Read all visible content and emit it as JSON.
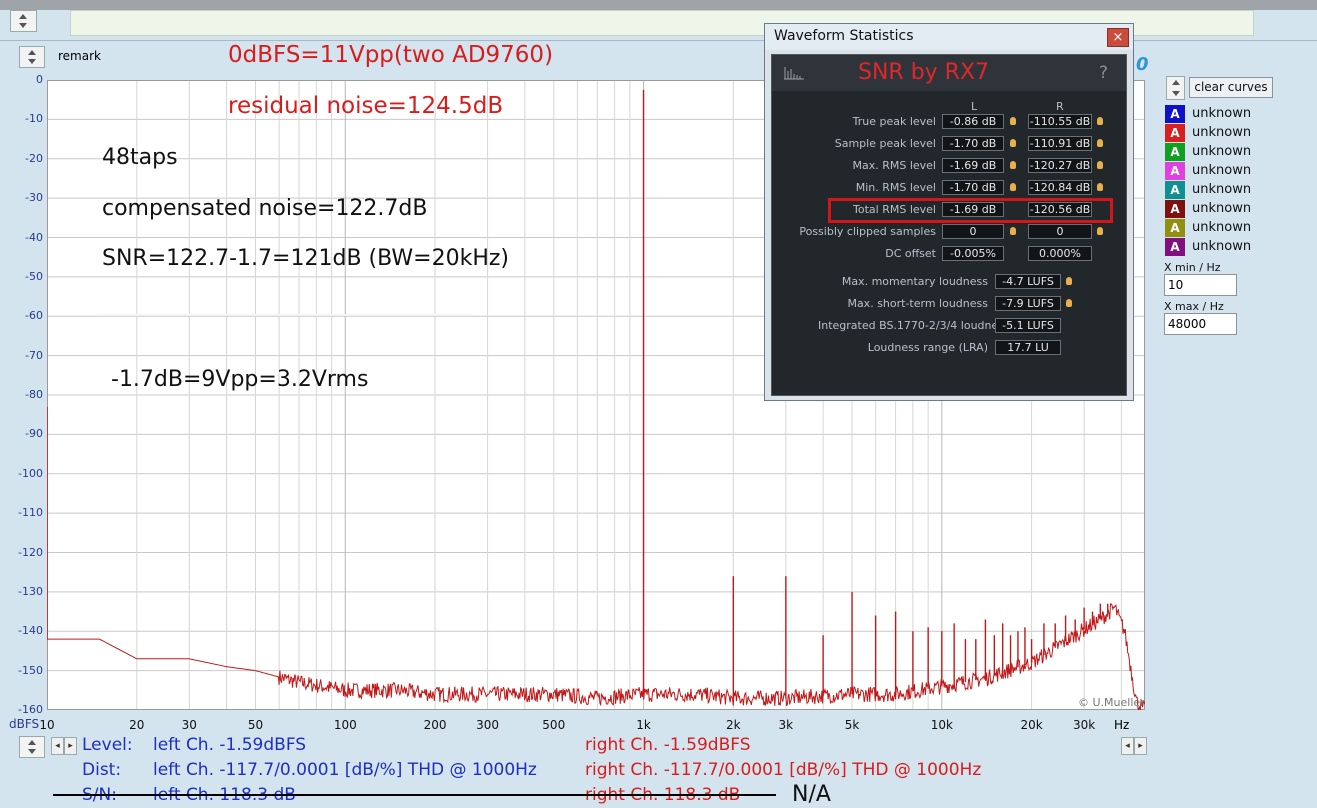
{
  "header": {
    "remark_label": "remark"
  },
  "annotations": {
    "fullscale": "0dBFS=11Vpp(two AD9760)",
    "residual": "residual noise=124.5dB",
    "taps": "48taps",
    "compensated": "compensated noise=122.7dB",
    "snr": "SNR=122.7-1.7=121dB (BW=20kHz)",
    "level": "-1.7dB=9Vpp=3.2Vrms"
  },
  "stats_window": {
    "title": "Waveform Statistics",
    "close_symbol": "×",
    "heading": "SNR by RX7",
    "help_symbol": "?",
    "col_left": "L",
    "col_right": "R",
    "rows": [
      {
        "label": "True peak level",
        "left": "-0.86 dB",
        "right": "-110.55 dB",
        "bulbs": true
      },
      {
        "label": "Sample peak level",
        "left": "-1.70 dB",
        "right": "-110.91 dB",
        "bulbs": true
      },
      {
        "label": "Max. RMS level",
        "left": "-1.69 dB",
        "right": "-120.27 dB",
        "bulbs": true
      },
      {
        "label": "Min. RMS level",
        "left": "-1.70 dB",
        "right": "-120.84 dB",
        "bulbs": true
      },
      {
        "label": "Total RMS level",
        "left": "-1.69 dB",
        "right": "-120.56 dB",
        "bulbs": false
      },
      {
        "label": "Possibly clipped samples",
        "left": "0",
        "right": "0",
        "bulbs": true
      },
      {
        "label": "DC offset",
        "left": "-0.005%",
        "right": "0.000%",
        "bulbs": false
      }
    ],
    "loudness": [
      {
        "label": "Max. momentary loudness",
        "value": "-4.7 LUFS",
        "bulb": true
      },
      {
        "label": "Max. short-term loudness",
        "value": "-7.9 LUFS",
        "bulb": true
      },
      {
        "label": "Integrated BS.1770-2/3/4 loudness",
        "value": "-5.1 LUFS",
        "bulb": false
      },
      {
        "label": "Loudness range (LRA)",
        "value": "17.7 LU",
        "bulb": false
      }
    ]
  },
  "controls": {
    "clear_curves": "clear curves",
    "legend": [
      {
        "letter": "A",
        "label": "unknown",
        "color": "#1010c8"
      },
      {
        "letter": "A",
        "label": "unknown",
        "color": "#d82020"
      },
      {
        "letter": "A",
        "label": "unknown",
        "color": "#10a020"
      },
      {
        "letter": "A",
        "label": "unknown",
        "color": "#e040e0"
      },
      {
        "letter": "A",
        "label": "unknown",
        "color": "#109090"
      },
      {
        "letter": "A",
        "label": "unknown",
        "color": "#801010"
      },
      {
        "letter": "A",
        "label": "unknown",
        "color": "#909010"
      },
      {
        "letter": "A",
        "label": "unknown",
        "color": "#801080"
      }
    ],
    "xmin_label": "X min / Hz",
    "xmin_value": "10",
    "xmax_label": "X max / Hz",
    "xmax_value": "48000",
    "partial_char": "0"
  },
  "chart_data": {
    "type": "line",
    "y_unit_label": "dBFS",
    "x_unit_label": "Hz",
    "watermark": "© U.Mueller",
    "x_scale": "log",
    "xlim": [
      10,
      48000
    ],
    "ylim": [
      -160,
      0
    ],
    "yticks": [
      0,
      -10,
      -20,
      -30,
      -40,
      -50,
      -60,
      -70,
      -80,
      -90,
      -100,
      -110,
      -120,
      -130,
      -140,
      -150,
      -160
    ],
    "xticks": [
      {
        "v": 10,
        "label": "10"
      },
      {
        "v": 20,
        "label": "20"
      },
      {
        "v": 30,
        "label": "30"
      },
      {
        "v": 50,
        "label": "50"
      },
      {
        "v": 100,
        "label": "100"
      },
      {
        "v": 200,
        "label": "200"
      },
      {
        "v": 300,
        "label": "300"
      },
      {
        "v": 500,
        "label": "500"
      },
      {
        "v": 1000,
        "label": "1k"
      },
      {
        "v": 2000,
        "label": "2k"
      },
      {
        "v": 3000,
        "label": "3k"
      },
      {
        "v": 5000,
        "label": "5k"
      },
      {
        "v": 10000,
        "label": "10k"
      },
      {
        "v": 20000,
        "label": "20k"
      },
      {
        "v": 30000,
        "label": "30k"
      }
    ],
    "grid": true,
    "series": [
      {
        "color": "#c01818",
        "noise_floor": [
          [
            10,
            -142
          ],
          [
            15,
            -142
          ],
          [
            20,
            -147
          ],
          [
            30,
            -147
          ],
          [
            40,
            -149
          ],
          [
            50,
            -150
          ],
          [
            70,
            -153
          ],
          [
            100,
            -155
          ],
          [
            150,
            -155
          ],
          [
            200,
            -156
          ],
          [
            300,
            -156
          ],
          [
            500,
            -156
          ],
          [
            700,
            -157
          ],
          [
            1000,
            -156
          ],
          [
            1500,
            -156
          ],
          [
            2000,
            -157
          ],
          [
            3000,
            -157
          ],
          [
            5000,
            -156
          ],
          [
            7000,
            -156
          ],
          [
            10000,
            -154
          ],
          [
            14000,
            -152
          ],
          [
            20000,
            -148
          ],
          [
            28000,
            -141
          ],
          [
            34000,
            -137
          ],
          [
            38000,
            -134
          ],
          [
            41000,
            -140
          ],
          [
            45000,
            -158
          ],
          [
            48000,
            -160
          ]
        ],
        "peaks": [
          [
            10,
            -83
          ],
          [
            1000,
            -2.5
          ],
          [
            2000,
            -126
          ],
          [
            3000,
            -126
          ],
          [
            4000,
            -141
          ],
          [
            5000,
            -130
          ],
          [
            6000,
            -136
          ],
          [
            7000,
            -135
          ],
          [
            8000,
            -140
          ],
          [
            9000,
            -139
          ],
          [
            10000,
            -140
          ],
          [
            11000,
            -138
          ],
          [
            12000,
            -142
          ],
          [
            13000,
            -142
          ],
          [
            14000,
            -137
          ],
          [
            15000,
            -141
          ],
          [
            16000,
            -138
          ],
          [
            17000,
            -141
          ],
          [
            18000,
            -140
          ],
          [
            19000,
            -139
          ],
          [
            20000,
            -142
          ],
          [
            22000,
            -138
          ],
          [
            24000,
            -138
          ],
          [
            26000,
            -136
          ],
          [
            28000,
            -137
          ],
          [
            30000,
            -134
          ],
          [
            32000,
            -135
          ],
          [
            34000,
            -133
          ],
          [
            36000,
            -133
          ]
        ]
      }
    ]
  },
  "readout": {
    "level_label": "Level:",
    "level_left": "left Ch. -1.59dBFS",
    "level_right": "right Ch. -1.59dBFS",
    "dist_label": "Dist:",
    "dist_left": "left Ch. -117.7/0.0001 [dB/%] THD @ 1000Hz",
    "dist_right": "right Ch. -117.7/0.0001 [dB/%] THD @ 1000Hz",
    "sn_label": "S/N:",
    "sn_left": "left Ch. 118.3 dB",
    "sn_right": "right Ch. 118.3 dB",
    "na": "N/A"
  }
}
